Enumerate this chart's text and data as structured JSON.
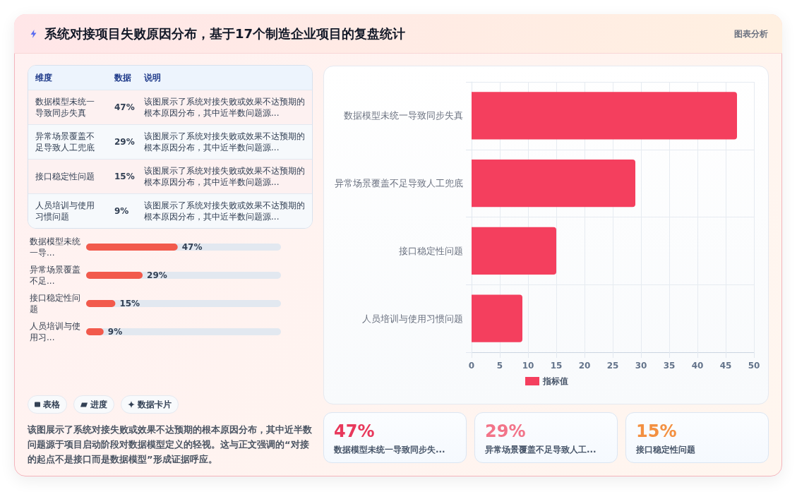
{
  "chart_data": [
    {
      "type": "other",
      "title": "系统对接项目失败原因分布，基于17个制造企业项目的复盘统计",
      "annotations": [
        "图表分析"
      ]
    },
    {
      "type": "other",
      "categories": [
        "数据模型未统一导致同步失真",
        "异常场景覆盖不足导致人工兜底",
        "接口稳定性问题",
        "人员培训与使用习惯问题"
      ],
      "value_labels": [
        "47%",
        "29%",
        "15%",
        "9%"
      ],
      "annotations": [
        "维度",
        "数据",
        "说明",
        "该图展示了系统对接失败或效果不达预期的根本原因分布，其中近半数问题源...",
        "该图展示了系统对接失败或效果不达预期的根本原因分布，其中近半数问题源...",
        "该图展示了系统对接失败或效果不达预期的根本原因分布，其中近半数问题源...",
        "该图展示了系统对接失败或效果不达预期的根本原因分布，其中近半数问题源..."
      ]
    },
    {
      "type": "bar",
      "orientation": "horizontal",
      "categories": [
        "数据模型未统一导...",
        "异常场景覆盖不足...",
        "接口稳定性问题",
        "人员培训与使用习..."
      ],
      "values": [
        47,
        29,
        15,
        9
      ],
      "value_labels": [
        "47%",
        "29%",
        "15%",
        "9%"
      ],
      "color": "#f25a4c",
      "xlim": [
        0,
        100
      ],
      "tick_labels": "y"
    },
    {
      "type": "other",
      "annotations": [
        "表格",
        "进度",
        "数据卡片",
        "该图展示了系统对接失败或效果不达预期的根本原因分布，其中近半数问题源于项目启动阶段对数据模型定义的轻视。这与正文强调的“对接的起点不是接口而是数据模型”形成证据呼应。"
      ]
    },
    {
      "type": "bar",
      "orientation": "horizontal",
      "categories": [
        "数据模型未统一导致同步失真",
        "异常场景覆盖不足导致人工兜底",
        "接口稳定性问题",
        "人员培训与使用习惯问题"
      ],
      "series": [
        {
          "name": "指标值",
          "color": "#f43f5e",
          "values": [
            47,
            29,
            15,
            9
          ]
        }
      ],
      "xlim": [
        0,
        50
      ],
      "xticks": [
        0,
        5,
        10,
        15,
        20,
        25,
        30,
        35,
        40,
        45,
        50
      ],
      "grid": true,
      "legend": "bottom"
    },
    {
      "type": "other",
      "categories": [
        "数据模型未统一导致同步失...",
        "异常场景覆盖不足导致人工...",
        "接口稳定性问题"
      ],
      "value_labels": [
        "47%",
        "29%",
        "15%"
      ]
    }
  ]
}
